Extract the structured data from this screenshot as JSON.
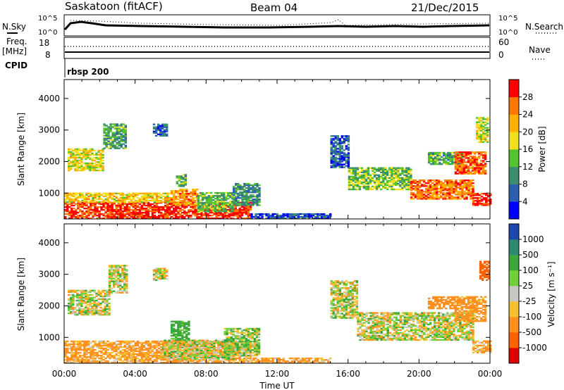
{
  "header": {
    "station": "Saskatoon (fitACF)",
    "beam": "Beam 04",
    "date": "21/Dec/2015"
  },
  "params": {
    "nsky_label": "N.Sky",
    "nsearch_label": "N.Search",
    "freq_label": "Freq.",
    "freq_unit": "[MHz]",
    "nave_label": "Nave",
    "cpid_label": "CPID",
    "cpid_value": "rbsp 200",
    "noise_left_ticks": [
      "10^5",
      "10^0"
    ],
    "noise_right_ticks": [
      "10^5",
      "10^0"
    ],
    "freq_ticks": [
      "18",
      "8"
    ],
    "nave_ticks": [
      "60",
      "0"
    ]
  },
  "axes": {
    "ylabel": "Slant Range [km]",
    "xlabel": "Time UT",
    "y_ticks": [
      "1000",
      "2000",
      "3000",
      "4000"
    ],
    "x_ticks": [
      "00:00",
      "04:00",
      "08:00",
      "12:00",
      "16:00",
      "20:00",
      "00:00"
    ]
  },
  "chart_data": [
    {
      "type": "heatmap",
      "title": "",
      "xlabel": "",
      "ylabel": "Slant Range [km]",
      "x_range": [
        "00:00",
        "24:00"
      ],
      "ylim": [
        180,
        4600
      ],
      "colorbar_label": "Power [dB]",
      "colorbar_ticks": [
        "4",
        "8",
        "12",
        "16",
        "20",
        "24",
        "28"
      ],
      "colors": [
        "#0000ff",
        "#2b5fb0",
        "#3c8c6e",
        "#55c22f",
        "#f0e020",
        "#ffb000",
        "#ff7800",
        "#ff0000"
      ],
      "regions": [
        {
          "t": [
            0.0,
            10.5
          ],
          "r": [
            180,
            700
          ],
          "v": 29
        },
        {
          "t": [
            0.0,
            6.0
          ],
          "r": [
            700,
            1000
          ],
          "v": 20
        },
        {
          "t": [
            6.0,
            7.5
          ],
          "r": [
            600,
            1100
          ],
          "v": 24
        },
        {
          "t": [
            7.5,
            9.5
          ],
          "r": [
            400,
            1000
          ],
          "v": 13
        },
        {
          "t": [
            9.5,
            11.0
          ],
          "r": [
            600,
            1300
          ],
          "v": 10
        },
        {
          "t": [
            0.2,
            2.2
          ],
          "r": [
            1700,
            2400
          ],
          "v": 18
        },
        {
          "t": [
            2.2,
            3.5
          ],
          "r": [
            2400,
            3200
          ],
          "v": 12
        },
        {
          "t": [
            5.0,
            5.8
          ],
          "r": [
            2800,
            3200
          ],
          "v": 6
        },
        {
          "t": [
            6.3,
            6.8
          ],
          "r": [
            1200,
            1600
          ],
          "v": 12
        },
        {
          "t": [
            10.5,
            15.0
          ],
          "r": [
            180,
            330
          ],
          "v": 5
        },
        {
          "t": [
            15.0,
            16.0
          ],
          "r": [
            1800,
            2800
          ],
          "v": 6
        },
        {
          "t": [
            16.0,
            19.5
          ],
          "r": [
            1100,
            1800
          ],
          "v": 14
        },
        {
          "t": [
            19.5,
            23.0
          ],
          "r": [
            800,
            1400
          ],
          "v": 26
        },
        {
          "t": [
            20.5,
            22.5
          ],
          "r": [
            1900,
            2300
          ],
          "v": 12
        },
        {
          "t": [
            22.0,
            23.8
          ],
          "r": [
            1600,
            2300
          ],
          "v": 27
        },
        {
          "t": [
            23.0,
            24.0
          ],
          "r": [
            600,
            1000
          ],
          "v": 29
        },
        {
          "t": [
            23.2,
            23.9
          ],
          "r": [
            2600,
            3400
          ],
          "v": 17
        }
      ]
    },
    {
      "type": "heatmap",
      "title": "",
      "xlabel": "Time UT",
      "ylabel": "Slant Range [km]",
      "x_range": [
        "00:00",
        "24:00"
      ],
      "ylim": [
        180,
        4600
      ],
      "colorbar_label": "Velocity [m s⁻¹]",
      "colorbar_ticks": [
        "1000",
        "500",
        "100",
        "25",
        "-25",
        "-100",
        "-500",
        "-1000"
      ],
      "colors": [
        "#1c47ad",
        "#2c8a73",
        "#3ca83c",
        "#70d03a",
        "#c8c8c0",
        "#f6c030",
        "#ff9020",
        "#ff6000",
        "#e00000"
      ],
      "regions": [
        {
          "t": [
            0.0,
            10.5
          ],
          "r": [
            180,
            900
          ],
          "v": -150
        },
        {
          "t": [
            5.5,
            9.5
          ],
          "r": [
            300,
            900
          ],
          "v": 0
        },
        {
          "t": [
            6.0,
            7.0
          ],
          "r": [
            900,
            1500
          ],
          "v": 200
        },
        {
          "t": [
            9.0,
            11.0
          ],
          "r": [
            400,
            1300
          ],
          "v": 50
        },
        {
          "t": [
            0.2,
            2.5
          ],
          "r": [
            1700,
            2500
          ],
          "v": 0
        },
        {
          "t": [
            2.5,
            3.5
          ],
          "r": [
            2400,
            3300
          ],
          "v": 0
        },
        {
          "t": [
            5.0,
            5.8
          ],
          "r": [
            2800,
            3200
          ],
          "v": 0
        },
        {
          "t": [
            10.5,
            15.0
          ],
          "r": [
            180,
            330
          ],
          "v": -150
        },
        {
          "t": [
            15.0,
            16.5
          ],
          "r": [
            1600,
            2800
          ],
          "v": 0
        },
        {
          "t": [
            16.5,
            23.0
          ],
          "r": [
            900,
            1800
          ],
          "v": 0
        },
        {
          "t": [
            20.5,
            22.0
          ],
          "r": [
            1900,
            2300
          ],
          "v": -300
        },
        {
          "t": [
            22.0,
            23.8
          ],
          "r": [
            1500,
            2300
          ],
          "v": -200
        },
        {
          "t": [
            23.0,
            24.0
          ],
          "r": [
            500,
            900
          ],
          "v": -150
        },
        {
          "t": [
            23.4,
            24.0
          ],
          "r": [
            2800,
            3400
          ],
          "v": -800
        }
      ]
    }
  ]
}
